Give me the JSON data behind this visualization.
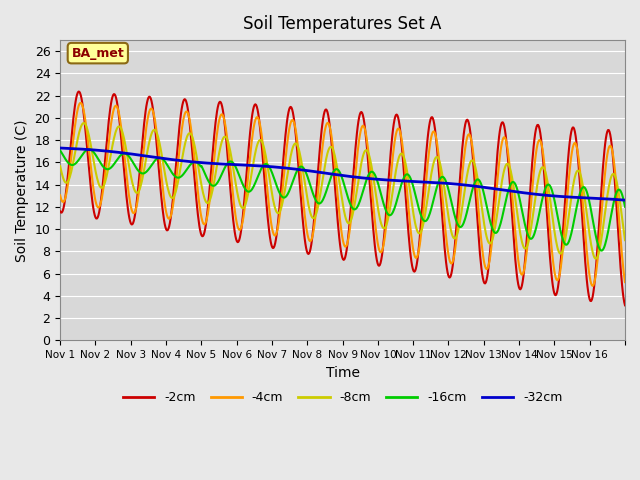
{
  "title": "Soil Temperatures Set A",
  "xlabel": "Time",
  "ylabel": "Soil Temperature (C)",
  "legend_label": "BA_met",
  "series_names": [
    "-2cm",
    "-4cm",
    "-8cm",
    "-16cm",
    "-32cm"
  ],
  "series_colors": [
    "#cc0000",
    "#ff9900",
    "#cccc00",
    "#00cc00",
    "#0000cc"
  ],
  "series_linewidths": [
    1.5,
    1.5,
    1.5,
    1.5,
    2.0
  ],
  "ylim": [
    0,
    27
  ],
  "yticks": [
    0,
    2,
    4,
    6,
    8,
    10,
    12,
    14,
    16,
    18,
    20,
    22,
    24,
    26
  ],
  "bg_color": "#e8e8e8",
  "plot_bg_color": "#d8d8d8",
  "grid_color": "#ffffff",
  "x_tick_labels": [
    "Nov 1",
    "Nov 2",
    "Nov 3",
    "Nov 4",
    "Nov 5",
    "Nov 6",
    "Nov 7",
    "Nov 8",
    "Nov 9",
    "Nov 10",
    "Nov 11",
    "Nov 12",
    "Nov 13",
    "Nov 14",
    "Nov 15",
    "Nov 16",
    ""
  ],
  "n_days": 16,
  "pts_per_day": 48
}
